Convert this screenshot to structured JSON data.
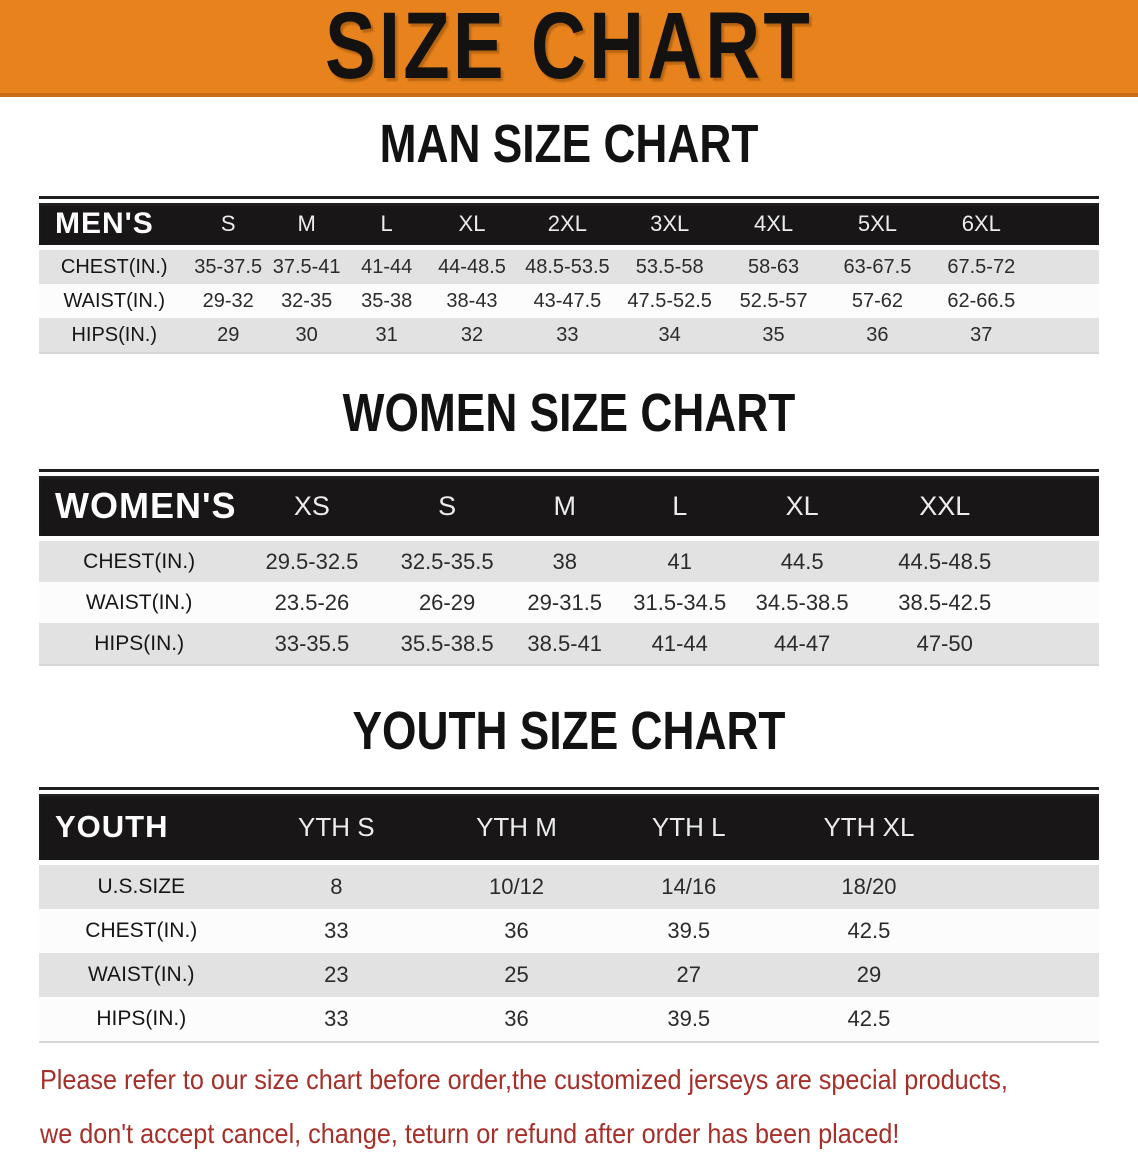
{
  "banner": {
    "title": "SIZE CHART",
    "background_color": "#e8821c"
  },
  "sections": [
    {
      "heading": "MAN SIZE CHART",
      "table": {
        "group_label": "MEN'S",
        "columns": [
          "S",
          "M",
          "L",
          "XL",
          "2XL",
          "3XL",
          "4XL",
          "5XL",
          "6XL"
        ],
        "rows": [
          {
            "label": "CHEST(IN.)",
            "values": [
              "35-37.5",
              "37.5-41",
              "41-44",
              "44-48.5",
              "48.5-53.5",
              "53.5-58",
              "58-63",
              "63-67.5",
              "67.5-72"
            ]
          },
          {
            "label": "WAIST(IN.)",
            "values": [
              "29-32",
              "32-35",
              "35-38",
              "38-43",
              "43-47.5",
              "47.5-52.5",
              "52.5-57",
              "57-62",
              "62-66.5"
            ]
          },
          {
            "label": "HIPS(IN.)",
            "values": [
              "29",
              "30",
              "31",
              "32",
              "33",
              "34",
              "35",
              "36",
              "37"
            ]
          }
        ]
      }
    },
    {
      "heading": "WOMEN SIZE CHART",
      "table": {
        "group_label": "WOMEN'S",
        "columns": [
          "XS",
          "S",
          "M",
          "L",
          "XL",
          "XXL"
        ],
        "rows": [
          {
            "label": "CHEST(IN.)",
            "values": [
              "29.5-32.5",
              "32.5-35.5",
              "38",
              "41",
              "44.5",
              "44.5-48.5"
            ]
          },
          {
            "label": "WAIST(IN.)",
            "values": [
              "23.5-26",
              "26-29",
              "29-31.5",
              "31.5-34.5",
              "34.5-38.5",
              "38.5-42.5"
            ]
          },
          {
            "label": "HIPS(IN.)",
            "values": [
              "33-35.5",
              "35.5-38.5",
              "38.5-41",
              "41-44",
              "44-47",
              "47-50"
            ]
          }
        ]
      }
    },
    {
      "heading": "YOUTH SIZE CHART",
      "table": {
        "group_label": "YOUTH",
        "columns": [
          "YTH S",
          "YTH M",
          "YTH L",
          "YTH XL"
        ],
        "rows": [
          {
            "label": "U.S.SIZE",
            "values": [
              "8",
              "10/12",
              "14/16",
              "18/20"
            ]
          },
          {
            "label": "CHEST(IN.)",
            "values": [
              "33",
              "36",
              "39.5",
              "42.5"
            ]
          },
          {
            "label": "WAIST(IN.)",
            "values": [
              "23",
              "25",
              "27",
              "29"
            ]
          },
          {
            "label": "HIPS(IN.)",
            "values": [
              "33",
              "36",
              "39.5",
              "42.5"
            ]
          }
        ]
      }
    }
  ],
  "footer": {
    "line1": "Please refer to our size chart before order,the customized jerseys are special products,",
    "line2": "we don't accept cancel, change, teturn or refund after order has been placed!",
    "text_color": "#a5302a"
  }
}
